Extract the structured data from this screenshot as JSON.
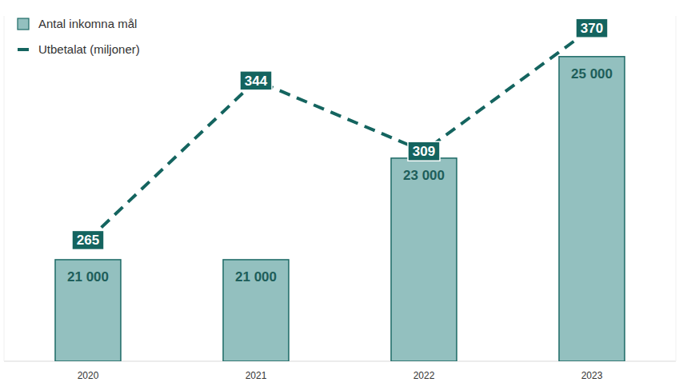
{
  "chart_data": {
    "type": "bar",
    "categories": [
      "2020",
      "2021",
      "2022",
      "2023"
    ],
    "series": [
      {
        "name": "Antal inkomna mål",
        "type": "bar",
        "color": "#93c0bf",
        "values": [
          21000,
          21000,
          23000,
          25000
        ],
        "value_labels": [
          "21 000",
          "21 000",
          "23 000",
          "25 000"
        ]
      },
      {
        "name": "Utbetalat (miljoner)",
        "type": "line",
        "axis": "y2",
        "color": "#14645f",
        "line_style": "dashed",
        "values": [
          265,
          344,
          309,
          370
        ]
      }
    ],
    "ylim": [
      19000,
      25800
    ],
    "y2lim": [
      205,
      376
    ],
    "data_labels": true,
    "legend": "top-left",
    "tick_labels": "x",
    "grid": false
  }
}
